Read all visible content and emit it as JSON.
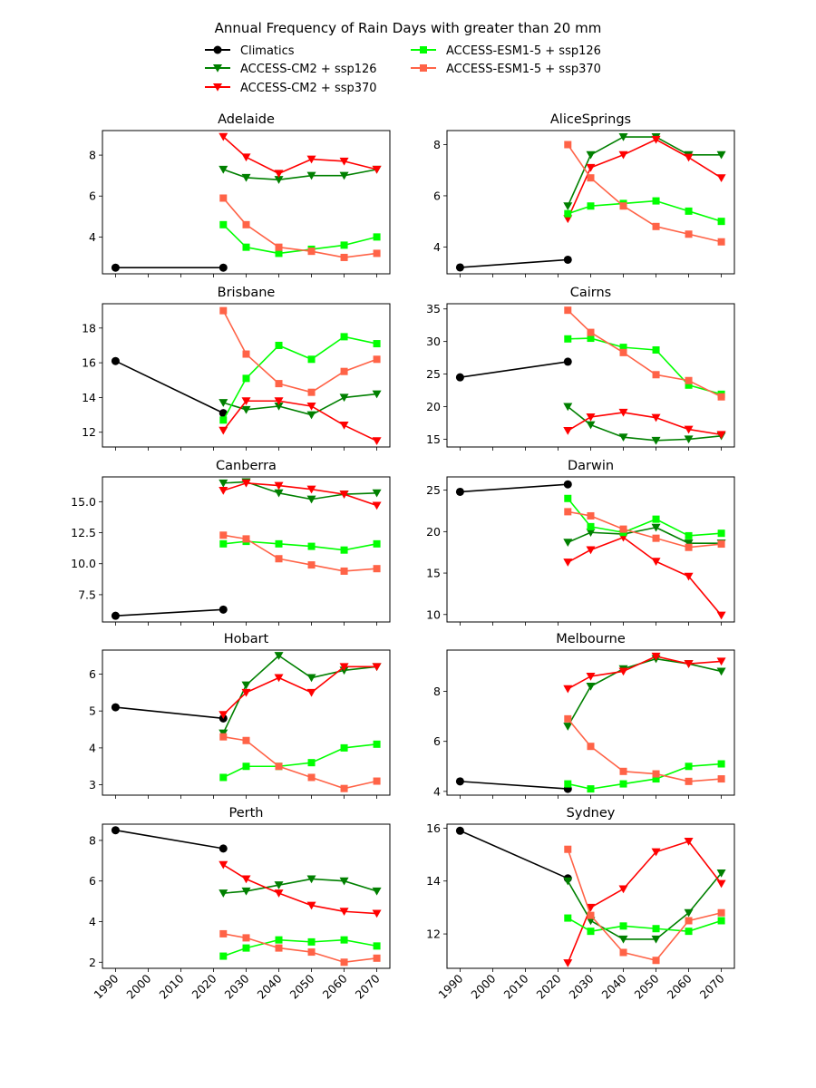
{
  "chart_data": {
    "type": "line",
    "title": "Annual Frequency of Rain Days with greater than 20 mm",
    "legend": {
      "placement": "top-center",
      "columns": 2,
      "entries": [
        "Climatics",
        "ACCESS-CM2 + ssp126",
        "ACCESS-CM2 + ssp370",
        "ACCESS-ESM1-5 + ssp126",
        "ACCESS-ESM1-5 + ssp370"
      ]
    },
    "series_styles": [
      {
        "name": "Climatics",
        "color": "#000000",
        "marker": "circle"
      },
      {
        "name": "ACCESS-CM2 + ssp126",
        "color": "#008000",
        "marker": "triangle-down"
      },
      {
        "name": "ACCESS-CM2 + ssp370",
        "color": "#ff0000",
        "marker": "triangle-down"
      },
      {
        "name": "ACCESS-ESM1-5 + ssp126",
        "color": "#00ff00",
        "marker": "square"
      },
      {
        "name": "ACCESS-ESM1-5 + ssp370",
        "color": "#ff6347",
        "marker": "square"
      }
    ],
    "x_climatics": [
      1990,
      2023
    ],
    "x_models": [
      2023,
      2030,
      2040,
      2050,
      2060,
      2070
    ],
    "xticks": [
      1990,
      2000,
      2010,
      2020,
      2030,
      2040,
      2050,
      2060,
      2070
    ],
    "xlim": [
      1986,
      2074
    ],
    "grid": false,
    "panels": [
      {
        "title": "Adelaide",
        "ylim": [
          2.2,
          9.2
        ],
        "yticks": [
          4,
          6,
          8
        ],
        "series": [
          {
            "name": "Climatics",
            "values": [
              2.5,
              2.5
            ]
          },
          {
            "name": "ACCESS-CM2 + ssp126",
            "values": [
              7.3,
              6.9,
              6.8,
              7.0,
              7.0,
              7.3
            ]
          },
          {
            "name": "ACCESS-CM2 + ssp370",
            "values": [
              8.9,
              7.9,
              7.1,
              7.8,
              7.7,
              7.3
            ]
          },
          {
            "name": "ACCESS-ESM1-5 + ssp126",
            "values": [
              4.6,
              3.5,
              3.2,
              3.4,
              3.6,
              4.0
            ]
          },
          {
            "name": "ACCESS-ESM1-5 + ssp370",
            "values": [
              5.9,
              4.6,
              3.5,
              3.3,
              3.0,
              3.2
            ]
          }
        ]
      },
      {
        "title": "AliceSprings",
        "ylim": [
          2.95,
          8.55
        ],
        "yticks": [
          4,
          6,
          8
        ],
        "series": [
          {
            "name": "Climatics",
            "values": [
              3.2,
              3.5
            ]
          },
          {
            "name": "ACCESS-CM2 + ssp126",
            "values": [
              5.6,
              7.6,
              8.3,
              8.3,
              7.6,
              7.6
            ]
          },
          {
            "name": "ACCESS-CM2 + ssp370",
            "values": [
              5.1,
              7.1,
              7.6,
              8.2,
              7.5,
              6.7
            ]
          },
          {
            "name": "ACCESS-ESM1-5 + ssp126",
            "values": [
              5.3,
              5.6,
              5.7,
              5.8,
              5.4,
              5.0
            ]
          },
          {
            "name": "ACCESS-ESM1-5 + ssp370",
            "values": [
              8.0,
              6.7,
              5.6,
              4.8,
              4.5,
              4.2
            ]
          }
        ]
      },
      {
        "title": "Brisbane",
        "ylim": [
          11.15,
          19.4
        ],
        "yticks": [
          12,
          14,
          16,
          18
        ],
        "series": [
          {
            "name": "Climatics",
            "values": [
              16.1,
              13.1
            ]
          },
          {
            "name": "ACCESS-CM2 + ssp126",
            "values": [
              13.7,
              13.3,
              13.5,
              13.0,
              14.0,
              14.2
            ]
          },
          {
            "name": "ACCESS-CM2 + ssp370",
            "values": [
              12.1,
              13.8,
              13.8,
              13.5,
              12.4,
              11.5
            ]
          },
          {
            "name": "ACCESS-ESM1-5 + ssp126",
            "values": [
              12.7,
              15.1,
              17.0,
              16.2,
              17.5,
              17.1
            ]
          },
          {
            "name": "ACCESS-ESM1-5 + ssp370",
            "values": [
              19.0,
              16.5,
              14.8,
              14.3,
              15.5,
              16.2
            ]
          }
        ]
      },
      {
        "title": "Cairns",
        "ylim": [
          13.8,
          35.8
        ],
        "yticks": [
          15,
          20,
          25,
          30,
          35
        ],
        "series": [
          {
            "name": "Climatics",
            "values": [
              24.5,
              26.9
            ]
          },
          {
            "name": "ACCESS-CM2 + ssp126",
            "values": [
              20.0,
              17.2,
              15.3,
              14.8,
              15.0,
              15.5
            ]
          },
          {
            "name": "ACCESS-CM2 + ssp370",
            "values": [
              16.3,
              18.4,
              19.1,
              18.3,
              16.5,
              15.7
            ]
          },
          {
            "name": "ACCESS-ESM1-5 + ssp126",
            "values": [
              30.4,
              30.5,
              29.1,
              28.7,
              23.3,
              21.9
            ]
          },
          {
            "name": "ACCESS-ESM1-5 + ssp370",
            "values": [
              34.8,
              31.4,
              28.3,
              24.9,
              24.0,
              21.5
            ]
          }
        ]
      },
      {
        "title": "Canberra",
        "ylim": [
          5.3,
          17.0
        ],
        "yticks": [
          7.5,
          10.0,
          12.5,
          15.0
        ],
        "series": [
          {
            "name": "Climatics",
            "values": [
              5.8,
              6.3
            ]
          },
          {
            "name": "ACCESS-CM2 + ssp126",
            "values": [
              16.5,
              16.6,
              15.7,
              15.2,
              15.6,
              15.7
            ]
          },
          {
            "name": "ACCESS-CM2 + ssp370",
            "values": [
              15.9,
              16.5,
              16.3,
              16.0,
              15.6,
              14.7
            ]
          },
          {
            "name": "ACCESS-ESM1-5 + ssp126",
            "values": [
              11.6,
              11.8,
              11.6,
              11.4,
              11.1,
              11.6
            ]
          },
          {
            "name": "ACCESS-ESM1-5 + ssp370",
            "values": [
              12.3,
              12.0,
              10.4,
              9.9,
              9.4,
              9.6
            ]
          }
        ]
      },
      {
        "title": "Darwin",
        "ylim": [
          9.1,
          26.6
        ],
        "yticks": [
          10,
          15,
          20,
          25
        ],
        "series": [
          {
            "name": "Climatics",
            "values": [
              24.8,
              25.7
            ]
          },
          {
            "name": "ACCESS-CM2 + ssp126",
            "values": [
              18.7,
              19.9,
              19.7,
              20.5,
              18.6,
              18.6
            ]
          },
          {
            "name": "ACCESS-CM2 + ssp370",
            "values": [
              16.3,
              17.8,
              19.3,
              16.4,
              14.6,
              9.9
            ]
          },
          {
            "name": "ACCESS-ESM1-5 + ssp126",
            "values": [
              24.0,
              20.6,
              19.9,
              21.5,
              19.5,
              19.8
            ]
          },
          {
            "name": "ACCESS-ESM1-5 + ssp370",
            "values": [
              22.4,
              21.9,
              20.3,
              19.2,
              18.1,
              18.5
            ]
          }
        ]
      },
      {
        "title": "Hobart",
        "ylim": [
          2.72,
          6.65
        ],
        "yticks": [
          3,
          4,
          5,
          6
        ],
        "series": [
          {
            "name": "Climatics",
            "values": [
              5.1,
              4.8
            ]
          },
          {
            "name": "ACCESS-CM2 + ssp126",
            "values": [
              4.4,
              5.7,
              6.5,
              5.9,
              6.1,
              6.2
            ]
          },
          {
            "name": "ACCESS-CM2 + ssp370",
            "values": [
              4.9,
              5.5,
              5.9,
              5.5,
              6.2,
              6.2
            ]
          },
          {
            "name": "ACCESS-ESM1-5 + ssp126",
            "values": [
              3.2,
              3.5,
              3.5,
              3.6,
              4.0,
              4.1
            ]
          },
          {
            "name": "ACCESS-ESM1-5 + ssp370",
            "values": [
              4.3,
              4.2,
              3.5,
              3.2,
              2.9,
              3.1
            ]
          }
        ]
      },
      {
        "title": "Melbourne",
        "ylim": [
          3.85,
          9.65
        ],
        "yticks": [
          4,
          6,
          8
        ],
        "series": [
          {
            "name": "Climatics",
            "values": [
              4.4,
              4.1
            ]
          },
          {
            "name": "ACCESS-CM2 + ssp126",
            "values": [
              6.6,
              8.2,
              8.9,
              9.3,
              9.1,
              8.8
            ]
          },
          {
            "name": "ACCESS-CM2 + ssp370",
            "values": [
              8.1,
              8.6,
              8.8,
              9.4,
              9.1,
              9.2
            ]
          },
          {
            "name": "ACCESS-ESM1-5 + ssp126",
            "values": [
              4.3,
              4.1,
              4.3,
              4.5,
              5.0,
              5.1
            ]
          },
          {
            "name": "ACCESS-ESM1-5 + ssp370",
            "values": [
              6.9,
              5.8,
              4.8,
              4.7,
              4.4,
              4.5
            ]
          }
        ]
      },
      {
        "title": "Perth",
        "ylim": [
          1.7,
          8.8
        ],
        "yticks": [
          2,
          4,
          6,
          8
        ],
        "series": [
          {
            "name": "Climatics",
            "values": [
              8.5,
              7.6
            ]
          },
          {
            "name": "ACCESS-CM2 + ssp126",
            "values": [
              5.4,
              5.5,
              5.8,
              6.1,
              6.0,
              5.5
            ]
          },
          {
            "name": "ACCESS-CM2 + ssp370",
            "values": [
              6.8,
              6.1,
              5.4,
              4.8,
              4.5,
              4.4
            ]
          },
          {
            "name": "ACCESS-ESM1-5 + ssp126",
            "values": [
              2.3,
              2.7,
              3.1,
              3.0,
              3.1,
              2.8
            ]
          },
          {
            "name": "ACCESS-ESM1-5 + ssp370",
            "values": [
              3.4,
              3.2,
              2.7,
              2.5,
              2.0,
              2.2
            ]
          }
        ]
      },
      {
        "title": "Sydney",
        "ylim": [
          10.7,
          16.15
        ],
        "yticks": [
          12,
          14,
          16
        ],
        "series": [
          {
            "name": "Climatics",
            "values": [
              15.9,
              14.1
            ]
          },
          {
            "name": "ACCESS-CM2 + ssp126",
            "values": [
              14.0,
              12.5,
              11.8,
              11.8,
              12.8,
              14.3
            ]
          },
          {
            "name": "ACCESS-CM2 + ssp370",
            "values": [
              10.9,
              13.0,
              13.7,
              15.1,
              15.5,
              13.9
            ]
          },
          {
            "name": "ACCESS-ESM1-5 + ssp126",
            "values": [
              12.6,
              12.1,
              12.3,
              12.2,
              12.1,
              12.5
            ]
          },
          {
            "name": "ACCESS-ESM1-5 + ssp370",
            "values": [
              15.2,
              12.7,
              11.3,
              11.0,
              12.5,
              12.8
            ]
          }
        ]
      }
    ]
  }
}
